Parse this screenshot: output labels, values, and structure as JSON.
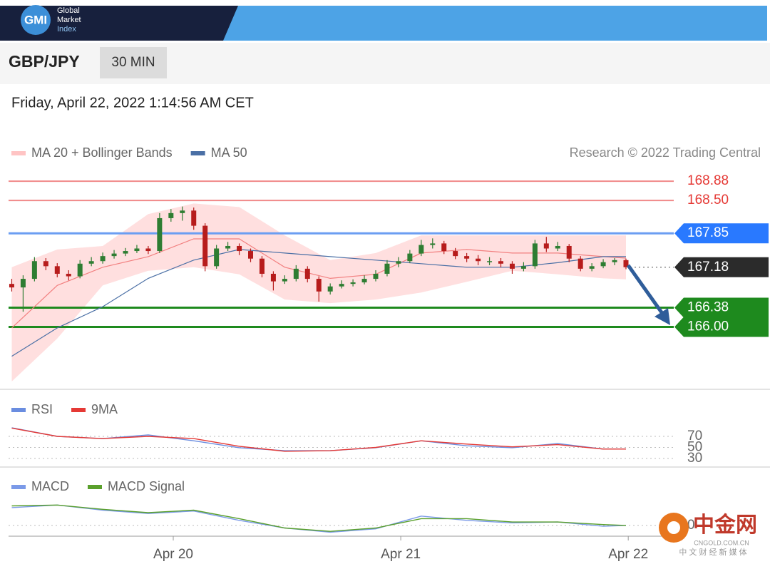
{
  "header": {
    "logo": "GMI",
    "brand": [
      "Global",
      "Market",
      "Index"
    ]
  },
  "instrument": {
    "symbol": "GBP/JPY",
    "timeframe": "30 MIN"
  },
  "timestamp": "Friday, April 22, 2022 1:14:56 AM CET",
  "watermark": {
    "name": "中金网",
    "site": "CNGOLD.COM.CN",
    "slogan": "中 文 财 经 新 媒 体"
  },
  "chart_data": [
    {
      "type": "candlestick",
      "credit": "Research © 2022 Trading Central",
      "ylim": [
        164.85,
        169.08
      ],
      "up_color": "#2e7d32",
      "down_color": "#b71c1c",
      "x": [
        -0.71,
        -0.66,
        -0.61,
        -0.56,
        -0.51,
        -0.46,
        -0.41,
        -0.36,
        -0.31,
        -0.26,
        -0.21,
        -0.16,
        -0.11,
        -0.06,
        -0.01,
        0.04,
        0.09,
        0.14,
        0.19,
        0.24,
        0.29,
        0.34,
        0.39,
        0.44,
        0.49,
        0.54,
        0.59,
        0.64,
        0.69,
        0.74,
        0.79,
        0.84,
        0.89,
        0.94,
        0.99,
        1.04,
        1.09,
        1.14,
        1.19,
        1.24,
        1.29,
        1.34,
        1.39,
        1.44,
        1.49,
        1.54,
        1.59,
        1.64,
        1.69,
        1.74,
        1.79,
        1.84,
        1.89,
        1.94,
        1.99
      ],
      "ohlc": [
        [
          166.85,
          166.95,
          166.7,
          166.78
        ],
        [
          166.78,
          167.02,
          166.3,
          166.95
        ],
        [
          166.95,
          167.38,
          166.9,
          167.3
        ],
        [
          167.3,
          167.36,
          167.12,
          167.2
        ],
        [
          167.2,
          167.26,
          166.98,
          167.05
        ],
        [
          167.05,
          167.12,
          166.92,
          167.0
        ],
        [
          167.0,
          167.32,
          166.96,
          167.25
        ],
        [
          167.25,
          167.38,
          167.2,
          167.3
        ],
        [
          167.3,
          167.47,
          167.25,
          167.4
        ],
        [
          167.4,
          167.52,
          167.35,
          167.45
        ],
        [
          167.45,
          167.56,
          167.4,
          167.5
        ],
        [
          167.5,
          167.62,
          167.46,
          167.55
        ],
        [
          167.55,
          167.6,
          167.44,
          167.5
        ],
        [
          167.5,
          168.25,
          167.46,
          168.15
        ],
        [
          168.15,
          168.33,
          168.08,
          168.25
        ],
        [
          168.25,
          168.38,
          168.1,
          168.3
        ],
        [
          168.3,
          168.36,
          167.92,
          168.0
        ],
        [
          168.0,
          168.05,
          167.1,
          167.2
        ],
        [
          167.2,
          167.62,
          167.15,
          167.55
        ],
        [
          167.55,
          167.68,
          167.5,
          167.6
        ],
        [
          167.6,
          167.65,
          167.42,
          167.5
        ],
        [
          167.5,
          167.55,
          167.28,
          167.35
        ],
        [
          167.35,
          167.4,
          166.98,
          167.05
        ],
        [
          167.05,
          167.1,
          166.72,
          166.9
        ],
        [
          166.9,
          167.02,
          166.85,
          166.95
        ],
        [
          166.95,
          167.22,
          166.9,
          167.15
        ],
        [
          167.15,
          167.2,
          166.88,
          166.95
        ],
        [
          166.95,
          167.0,
          166.5,
          166.7
        ],
        [
          166.7,
          166.86,
          166.64,
          166.8
        ],
        [
          166.8,
          166.92,
          166.76,
          166.85
        ],
        [
          166.85,
          166.94,
          166.8,
          166.88
        ],
        [
          166.88,
          167.02,
          166.84,
          166.95
        ],
        [
          166.95,
          167.12,
          166.9,
          167.05
        ],
        [
          167.05,
          167.32,
          167.0,
          167.25
        ],
        [
          167.25,
          167.38,
          167.18,
          167.3
        ],
        [
          167.3,
          167.52,
          167.26,
          167.45
        ],
        [
          167.45,
          167.72,
          167.4,
          167.62
        ],
        [
          167.62,
          167.75,
          167.55,
          167.65
        ],
        [
          167.65,
          167.7,
          167.44,
          167.5
        ],
        [
          167.5,
          167.56,
          167.34,
          167.4
        ],
        [
          167.4,
          167.46,
          167.28,
          167.35
        ],
        [
          167.35,
          167.42,
          167.22,
          167.3
        ],
        [
          167.3,
          167.38,
          167.22,
          167.3
        ],
        [
          167.3,
          167.36,
          167.18,
          167.25
        ],
        [
          167.25,
          167.3,
          167.05,
          167.15
        ],
        [
          167.15,
          167.28,
          167.1,
          167.2
        ],
        [
          167.2,
          167.72,
          167.15,
          167.65
        ],
        [
          167.65,
          167.78,
          167.48,
          167.55
        ],
        [
          167.55,
          167.68,
          167.5,
          167.6
        ],
        [
          167.6,
          167.64,
          167.28,
          167.35
        ],
        [
          167.35,
          167.4,
          167.1,
          167.15
        ],
        [
          167.15,
          167.26,
          167.1,
          167.2
        ],
        [
          167.2,
          167.34,
          167.16,
          167.28
        ],
        [
          167.28,
          167.36,
          167.22,
          167.32
        ],
        [
          167.32,
          167.35,
          167.14,
          167.18
        ]
      ],
      "series": [
        {
          "name": "MA 20 + Bollinger Bands",
          "color": "#f28080",
          "band_color": "#ffc4c4",
          "x": [
            -0.71,
            -0.51,
            -0.31,
            -0.11,
            0.09,
            0.29,
            0.49,
            0.69,
            0.89,
            1.09,
            1.29,
            1.49,
            1.69,
            1.89,
            1.99
          ],
          "values": [
            165.98,
            166.82,
            167.18,
            167.39,
            167.74,
            167.74,
            167.18,
            166.96,
            167.04,
            167.46,
            167.53,
            167.46,
            167.46,
            167.39,
            167.36
          ],
          "upper": [
            167.18,
            167.53,
            167.6,
            168.23,
            168.44,
            168.37,
            167.81,
            167.32,
            167.46,
            167.81,
            167.81,
            167.81,
            167.81,
            167.81,
            167.81
          ],
          "lower": [
            164.92,
            165.77,
            166.82,
            167.11,
            167.18,
            167.04,
            166.54,
            166.47,
            166.54,
            166.68,
            166.89,
            167.11,
            167.04,
            166.96,
            166.94
          ]
        },
        {
          "name": "MA 50",
          "color": "#4a6fa5",
          "x": [
            -0.71,
            -0.51,
            -0.31,
            -0.11,
            0.09,
            0.29,
            0.49,
            0.69,
            0.89,
            1.09,
            1.29,
            1.49,
            1.69,
            1.89,
            1.99
          ],
          "values": [
            165.42,
            165.98,
            166.4,
            166.96,
            167.32,
            167.53,
            167.46,
            167.39,
            167.32,
            167.25,
            167.18,
            167.18,
            167.27,
            167.39,
            167.39
          ]
        }
      ],
      "levels": [
        {
          "value": 168.88,
          "color": "#f08a8a",
          "text_color": "#e53935",
          "style": "line"
        },
        {
          "value": 168.5,
          "label": "168.50",
          "color": "#f08a8a",
          "text_color": "#e53935",
          "style": "line"
        },
        {
          "value": 167.85,
          "color": "#6b9ef2",
          "text_color": "#ffffff",
          "tag_color": "#2979ff",
          "style": "tag"
        },
        {
          "value": 167.18,
          "color": "#8a8a8a",
          "text_color": "#ffffff",
          "tag_color": "#2b2b2b",
          "style": "dotted-tag"
        },
        {
          "value": 166.38,
          "color": "#1e8a1e",
          "text_color": "#ffffff",
          "tag_color": "#1e8a1e",
          "style": "tag"
        },
        {
          "value": 166,
          "label": "166.00",
          "color": "#1e8a1e",
          "text_color": "#ffffff",
          "tag_color": "#1e8a1e",
          "style": "tag"
        }
      ]
    },
    {
      "type": "line",
      "ylim": [
        23.5,
        85.5
      ],
      "yticks": [
        70,
        50,
        30
      ],
      "grid": true,
      "series": [
        {
          "name": "RSI",
          "color": "#6a8de0",
          "x": [
            -0.71,
            -0.51,
            -0.31,
            -0.11,
            0.09,
            0.29,
            0.49,
            0.69,
            0.89,
            1.09,
            1.29,
            1.49,
            1.69,
            1.89,
            1.99
          ],
          "values": [
            85.5,
            70,
            66,
            72.6,
            62,
            49.4,
            44,
            44,
            49.4,
            62,
            53,
            49.4,
            57,
            47,
            47
          ]
        },
        {
          "name": "9MA",
          "color": "#e53935",
          "x": [
            -0.71,
            -0.51,
            -0.31,
            -0.11,
            0.09,
            0.29,
            0.49,
            0.69,
            0.89,
            1.09,
            1.29,
            1.49,
            1.69,
            1.89,
            1.99
          ],
          "values": [
            85,
            70,
            66,
            70,
            66,
            52,
            43,
            44,
            50,
            62,
            56,
            51,
            55,
            47,
            47
          ]
        }
      ]
    },
    {
      "type": "line",
      "ylim": [
        -0.11,
        0.31
      ],
      "yticks": [
        0
      ],
      "grid": true,
      "xlim": [
        -0.724,
        2.2
      ],
      "xticks": [
        {
          "value": 0,
          "label": "Apr 20"
        },
        {
          "value": 1,
          "label": "Apr 21"
        },
        {
          "value": 2,
          "label": "Apr 22"
        }
      ],
      "series": [
        {
          "name": "MACD",
          "color": "#7b9ae8",
          "x": [
            -0.71,
            -0.51,
            -0.31,
            -0.11,
            0.09,
            0.29,
            0.49,
            0.69,
            0.89,
            1.09,
            1.29,
            1.49,
            1.69,
            1.89,
            1.99
          ],
          "values": [
            0.21,
            0.24,
            0.18,
            0.14,
            0.17,
            0.06,
            -0.03,
            -0.08,
            -0.04,
            0.11,
            0.06,
            0.03,
            0.04,
            -0.01,
            0
          ]
        },
        {
          "name": "MACD Signal",
          "color": "#5aa02c",
          "x": [
            -0.71,
            -0.51,
            -0.31,
            -0.11,
            0.09,
            0.29,
            0.49,
            0.69,
            0.89,
            1.09,
            1.29,
            1.49,
            1.69,
            1.89,
            1.99
          ],
          "values": [
            0.23,
            0.24,
            0.19,
            0.15,
            0.18,
            0.08,
            -0.03,
            -0.07,
            -0.03,
            0.08,
            0.08,
            0.04,
            0.04,
            0.01,
            0
          ]
        }
      ]
    }
  ]
}
